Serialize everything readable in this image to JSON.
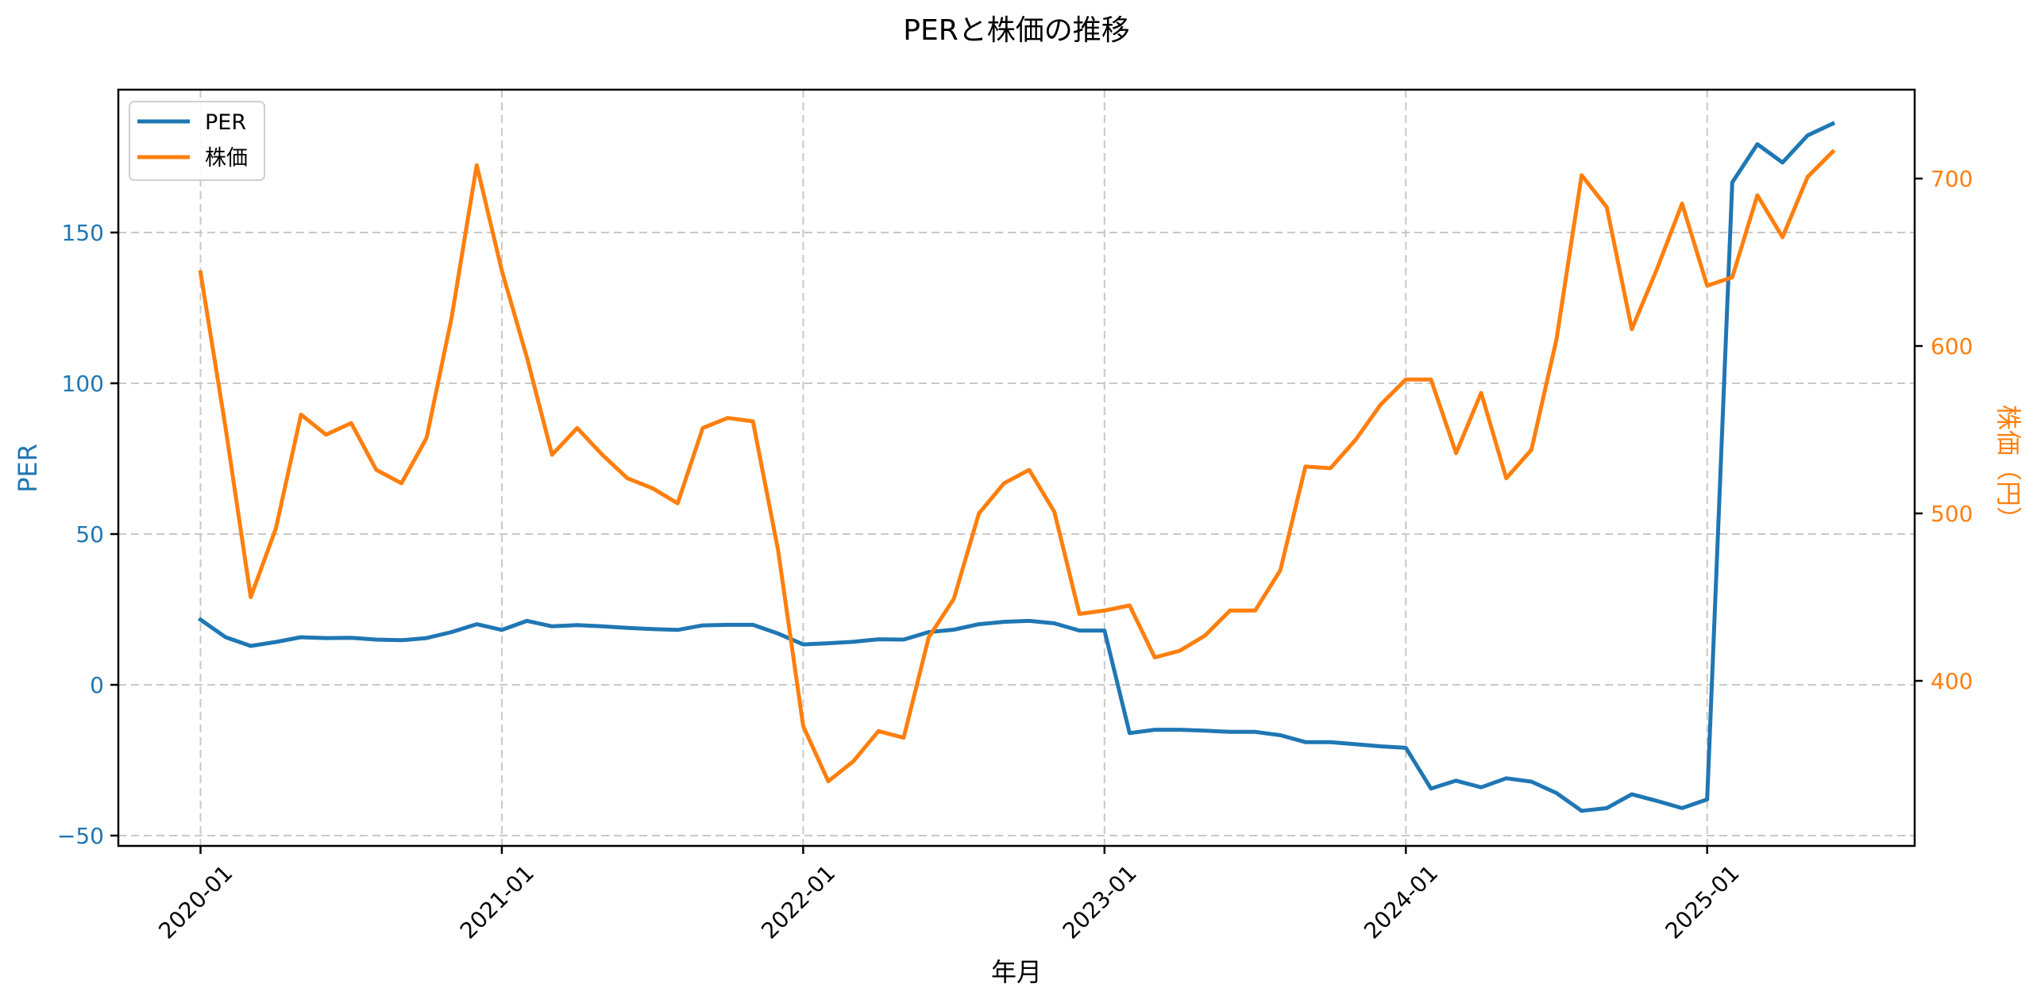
{
  "chart_data": {
    "type": "line",
    "title": "PERと株価の推移",
    "xlabel": "年月",
    "ylabel": "PER",
    "ylabel_right": "株価（円）",
    "dual_axis": true,
    "grid": true,
    "legend_position": "upper left",
    "x_tick_labels": [
      "2020-01",
      "2021-01",
      "2022-01",
      "2023-01",
      "2024-01",
      "2025-01"
    ],
    "y_ticks_left": [
      -50,
      0,
      50,
      100,
      150
    ],
    "y_ticks_right": [
      400,
      500,
      600,
      700
    ],
    "ylim_left": [
      -53,
      188
    ],
    "ylim_right": [
      306,
      752
    ],
    "x": [
      "2020-01",
      "2020-02",
      "2020-03",
      "2020-04",
      "2020-05",
      "2020-06",
      "2020-07",
      "2020-08",
      "2020-09",
      "2020-10",
      "2020-11",
      "2020-12",
      "2021-01",
      "2021-02",
      "2021-03",
      "2021-04",
      "2021-05",
      "2021-06",
      "2021-07",
      "2021-08",
      "2021-09",
      "2021-10",
      "2021-11",
      "2021-12",
      "2022-01",
      "2022-02",
      "2022-03",
      "2022-04",
      "2022-05",
      "2022-06",
      "2022-07",
      "2022-08",
      "2022-09",
      "2022-10",
      "2022-11",
      "2022-12",
      "2023-01",
      "2023-02",
      "2023-03",
      "2023-04",
      "2023-05",
      "2023-06",
      "2023-07",
      "2023-08",
      "2023-09",
      "2023-10",
      "2023-11",
      "2023-12",
      "2024-01",
      "2024-02",
      "2024-03",
      "2024-04",
      "2024-05",
      "2024-06",
      "2024-07",
      "2024-08",
      "2024-09",
      "2024-10",
      "2024-11",
      "2024-12",
      "2025-01",
      "2025-02",
      "2025-03",
      "2025-04",
      "2025-05",
      "2025-06"
    ],
    "series": [
      {
        "name": "PER",
        "axis": "left",
        "color": "#1f77b4",
        "values": [
          21.6,
          15.8,
          12.9,
          14.2,
          15.8,
          15.5,
          15.6,
          15.0,
          14.8,
          15.5,
          17.5,
          20.1,
          18.2,
          21.2,
          19.4,
          19.8,
          19.4,
          18.9,
          18.5,
          18.2,
          19.7,
          19.9,
          19.9,
          17.0,
          13.4,
          13.8,
          14.3,
          15.1,
          15.0,
          17.5,
          18.3,
          20.1,
          20.9,
          21.2,
          20.4,
          18.0,
          18.0,
          -16.0,
          -14.9,
          -14.9,
          -15.2,
          -15.6,
          -15.6,
          -16.7,
          -19.0,
          -19.0,
          -19.7,
          -20.4,
          -20.9,
          -34.4,
          -31.8,
          -34.0,
          -31.0,
          -32.1,
          -35.9,
          -41.8,
          -40.9,
          -36.3,
          -38.5,
          -40.9,
          -38.0,
          166.6,
          179.3,
          173.2,
          182.2,
          186.1
        ]
      },
      {
        "name": "株価",
        "axis": "right",
        "color": "#ff7f0e",
        "values": [
          644,
          551,
          450,
          491,
          559,
          547,
          554,
          526,
          518,
          545,
          617,
          708,
          645,
          593,
          535,
          551,
          535,
          521,
          515,
          506,
          551,
          557,
          555,
          478,
          373,
          340,
          352,
          370,
          366,
          426,
          449,
          500,
          518,
          526,
          501,
          440,
          442,
          445,
          414,
          418,
          427,
          442,
          442,
          466,
          528,
          527,
          544,
          565,
          580,
          580,
          536,
          572,
          521,
          538,
          604,
          702,
          683,
          610,
          646,
          685,
          636,
          641,
          690,
          665,
          701,
          716
        ]
      }
    ]
  },
  "legend": {
    "items": [
      {
        "label": "PER",
        "color": "#1f77b4"
      },
      {
        "label": "株価",
        "color": "#ff7f0e"
      }
    ]
  },
  "colors": {
    "per": "#1f77b4",
    "price": "#ff7f0e",
    "grid": "#c8c8c8",
    "axis": "#000000"
  }
}
